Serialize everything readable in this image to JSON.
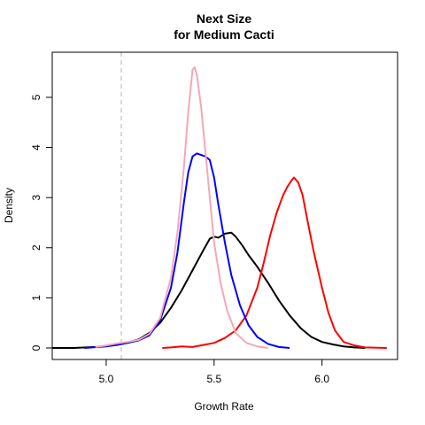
{
  "chart_data": {
    "type": "line",
    "title_line1": "Next Size",
    "title_line2": "for Medium Cacti",
    "xlabel": "Growth Rate",
    "ylabel": "Density",
    "xlim": [
      4.75,
      6.35
    ],
    "ylim": [
      -0.23,
      5.9
    ],
    "x_ticks": [
      5.0,
      5.5,
      6.0
    ],
    "x_tick_labels": [
      "5.0",
      "5.5",
      "6.0"
    ],
    "y_ticks": [
      0,
      1,
      2,
      3,
      4,
      5
    ],
    "y_tick_labels": [
      "0",
      "1",
      "2",
      "3",
      "4",
      "5"
    ],
    "reference_line": {
      "x": 5.07,
      "color": "#cccccc",
      "style": "dashed"
    },
    "grid": false,
    "legend": "none",
    "series": [
      {
        "color": "#000000",
        "points": [
          [
            4.75,
            0.0
          ],
          [
            4.85,
            0.0
          ],
          [
            4.95,
            0.02
          ],
          [
            5.05,
            0.07
          ],
          [
            5.1,
            0.11
          ],
          [
            5.15,
            0.17
          ],
          [
            5.2,
            0.3
          ],
          [
            5.25,
            0.5
          ],
          [
            5.3,
            0.8
          ],
          [
            5.35,
            1.15
          ],
          [
            5.4,
            1.55
          ],
          [
            5.45,
            1.95
          ],
          [
            5.48,
            2.18
          ],
          [
            5.5,
            2.22
          ],
          [
            5.52,
            2.2
          ],
          [
            5.55,
            2.28
          ],
          [
            5.58,
            2.3
          ],
          [
            5.6,
            2.22
          ],
          [
            5.63,
            2.05
          ],
          [
            5.66,
            1.85
          ],
          [
            5.7,
            1.62
          ],
          [
            5.75,
            1.3
          ],
          [
            5.8,
            0.95
          ],
          [
            5.85,
            0.65
          ],
          [
            5.9,
            0.4
          ],
          [
            5.95,
            0.22
          ],
          [
            6.0,
            0.12
          ],
          [
            6.05,
            0.07
          ],
          [
            6.1,
            0.03
          ],
          [
            6.15,
            0.01
          ],
          [
            6.2,
            0.0
          ]
        ]
      },
      {
        "color": "#ff0000",
        "points": [
          [
            5.26,
            0.0
          ],
          [
            5.3,
            0.01
          ],
          [
            5.35,
            0.03
          ],
          [
            5.4,
            0.02
          ],
          [
            5.45,
            0.06
          ],
          [
            5.5,
            0.1
          ],
          [
            5.55,
            0.2
          ],
          [
            5.6,
            0.35
          ],
          [
            5.65,
            0.65
          ],
          [
            5.7,
            1.2
          ],
          [
            5.73,
            1.7
          ],
          [
            5.76,
            2.25
          ],
          [
            5.79,
            2.7
          ],
          [
            5.82,
            3.05
          ],
          [
            5.84,
            3.22
          ],
          [
            5.86,
            3.35
          ],
          [
            5.87,
            3.4
          ],
          [
            5.89,
            3.3
          ],
          [
            5.91,
            3.05
          ],
          [
            5.93,
            2.6
          ],
          [
            5.96,
            1.95
          ],
          [
            6.0,
            1.2
          ],
          [
            6.03,
            0.7
          ],
          [
            6.06,
            0.35
          ],
          [
            6.1,
            0.12
          ],
          [
            6.15,
            0.05
          ],
          [
            6.2,
            0.01
          ],
          [
            6.3,
            0.0
          ]
        ]
      },
      {
        "color": "#0000ff",
        "points": [
          [
            4.9,
            0.0
          ],
          [
            5.0,
            0.03
          ],
          [
            5.05,
            0.06
          ],
          [
            5.1,
            0.1
          ],
          [
            5.15,
            0.15
          ],
          [
            5.2,
            0.25
          ],
          [
            5.25,
            0.55
          ],
          [
            5.3,
            1.2
          ],
          [
            5.33,
            1.9
          ],
          [
            5.36,
            2.9
          ],
          [
            5.38,
            3.5
          ],
          [
            5.4,
            3.82
          ],
          [
            5.42,
            3.88
          ],
          [
            5.44,
            3.85
          ],
          [
            5.46,
            3.82
          ],
          [
            5.48,
            3.75
          ],
          [
            5.5,
            3.4
          ],
          [
            5.52,
            2.85
          ],
          [
            5.55,
            2.1
          ],
          [
            5.58,
            1.45
          ],
          [
            5.62,
            0.85
          ],
          [
            5.66,
            0.45
          ],
          [
            5.7,
            0.22
          ],
          [
            5.75,
            0.08
          ],
          [
            5.8,
            0.02
          ],
          [
            5.85,
            0.0
          ]
        ]
      },
      {
        "color": "#f5a7b8",
        "points": [
          [
            4.95,
            0.02
          ],
          [
            5.0,
            0.05
          ],
          [
            5.05,
            0.09
          ],
          [
            5.1,
            0.12
          ],
          [
            5.15,
            0.16
          ],
          [
            5.2,
            0.28
          ],
          [
            5.25,
            0.6
          ],
          [
            5.3,
            1.4
          ],
          [
            5.33,
            2.3
          ],
          [
            5.36,
            3.6
          ],
          [
            5.38,
            4.7
          ],
          [
            5.4,
            5.55
          ],
          [
            5.41,
            5.6
          ],
          [
            5.42,
            5.45
          ],
          [
            5.44,
            4.8
          ],
          [
            5.46,
            3.9
          ],
          [
            5.48,
            3.0
          ],
          [
            5.5,
            2.1
          ],
          [
            5.53,
            1.3
          ],
          [
            5.56,
            0.75
          ],
          [
            5.6,
            0.3
          ],
          [
            5.65,
            0.1
          ],
          [
            5.7,
            0.03
          ],
          [
            5.75,
            0.0
          ]
        ]
      }
    ]
  }
}
